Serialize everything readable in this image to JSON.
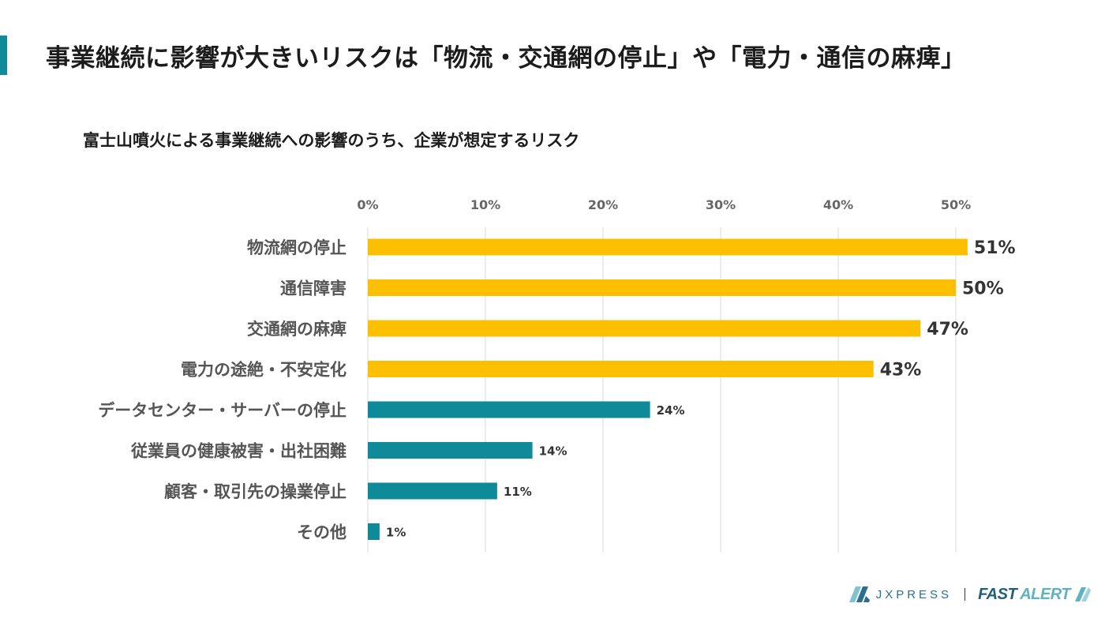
{
  "title": "事業継続に影響が大きいリスクは「物流・交通網の停止」や「電力・通信の麻痺」",
  "colors": {
    "accent": "#0f8a98",
    "highlight": "#fcc000",
    "normal": "#0f8a98",
    "grid": "#d9d9d9"
  },
  "chart_data": {
    "type": "bar",
    "orientation": "horizontal",
    "title": "富士山噴火による事業継続への影響のうち、企業が想定するリスク",
    "xlabel": "",
    "ylabel": "",
    "xlim": [
      0,
      50
    ],
    "ticks": [
      "0%",
      "10%",
      "20%",
      "30%",
      "40%",
      "50%"
    ],
    "tick_values": [
      0,
      10,
      20,
      30,
      40,
      50
    ],
    "categories": [
      "物流網の停止",
      "通信障害",
      "交通網の麻痺",
      "電力の途絶・不安定化",
      "データセンター・サーバーの停止",
      "従業員の健康被害・出社困難",
      "顧客・取引先の操業停止",
      "その他"
    ],
    "values": [
      51,
      50,
      47,
      43,
      24,
      14,
      11,
      1
    ],
    "value_labels": [
      "51%",
      "50%",
      "47%",
      "43%",
      "24%",
      "14%",
      "11%",
      "1%"
    ],
    "highlighted": [
      true,
      true,
      true,
      true,
      false,
      false,
      false,
      false
    ],
    "grid": true
  },
  "footer": {
    "logo1_text": "JXPRESS",
    "logo2_part1": "FAST",
    "logo2_part2": "ALERT"
  }
}
